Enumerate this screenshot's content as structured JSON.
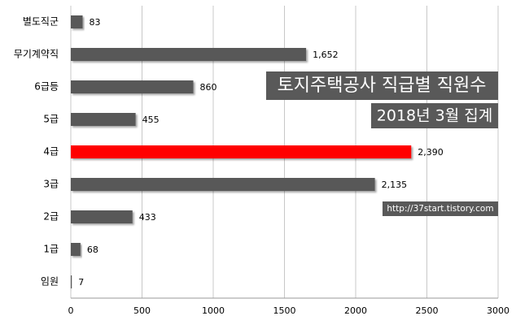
{
  "chart_data": {
    "type": "bar",
    "orientation": "horizontal",
    "title": "토지주택공사 직급별 직원수",
    "subtitle": "2018년 3월 집계",
    "annotation": "http://37start.tistory.com",
    "categories": [
      "별도직군",
      "무기계약직",
      "6급등",
      "5급",
      "4급",
      "3급",
      "2급",
      "1급",
      "임원"
    ],
    "values": [
      83,
      1652,
      860,
      455,
      2390,
      2135,
      433,
      68,
      7
    ],
    "value_labels": [
      "83",
      "1,652",
      "860",
      "455",
      "2,390",
      "2,135",
      "433",
      "68",
      "7"
    ],
    "colors": [
      "#595959",
      "#595959",
      "#595959",
      "#595959",
      "#ff0000",
      "#595959",
      "#595959",
      "#595959",
      "#595959"
    ],
    "xlim": [
      0,
      3000
    ],
    "xticks": [
      0,
      500,
      1000,
      1500,
      2000,
      2500,
      3000
    ],
    "grid": true
  }
}
